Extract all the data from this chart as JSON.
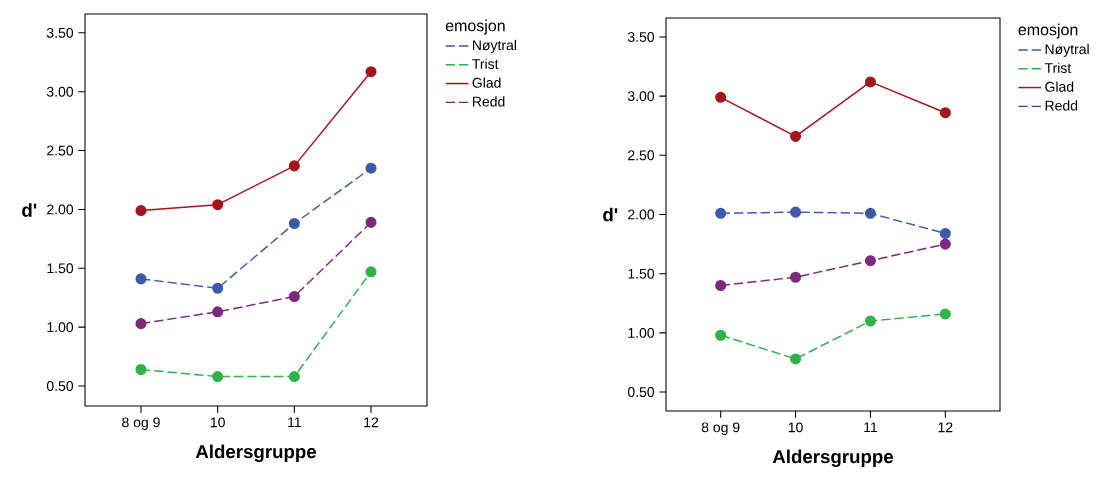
{
  "chart_data": [
    {
      "type": "line",
      "xlabel": "Aldersgruppe",
      "ylabel": "d'",
      "legend_title": "emosjon",
      "legend": "top right",
      "marker": "circle",
      "categories": [
        "8 og 9",
        "10",
        "11",
        "12"
      ],
      "ylim": [
        0.33,
        3.66
      ],
      "yticks": [
        {
          "value": 0.5,
          "label": "0.50"
        },
        {
          "value": 1.0,
          "label": "1.00"
        },
        {
          "value": 1.5,
          "label": "1.50"
        },
        {
          "value": 2.0,
          "label": "2.00"
        },
        {
          "value": 2.5,
          "label": "2.50"
        },
        {
          "value": 3.0,
          "label": "3.00"
        },
        {
          "value": 3.5,
          "label": "3.50"
        }
      ],
      "series": [
        {
          "name": "Nøytral",
          "color": "#3e59a9",
          "line_style": "dashed",
          "values": [
            1.41,
            1.33,
            1.88,
            2.35
          ]
        },
        {
          "name": "Trist",
          "color": "#2fb24a",
          "line_style": "dashed",
          "values": [
            0.64,
            0.58,
            0.58,
            1.47
          ]
        },
        {
          "name": "Glad",
          "color": "#a3161b",
          "line_style": "solid",
          "values": [
            1.99,
            2.04,
            2.37,
            3.17
          ]
        },
        {
          "name": "Redd",
          "color": "#7b2a7e",
          "line_style": "dashed",
          "values": [
            1.03,
            1.13,
            1.26,
            1.89
          ]
        }
      ]
    },
    {
      "type": "line",
      "xlabel": "Aldersgruppe",
      "ylabel": "d'",
      "legend_title": "emosjon",
      "legend": "top right",
      "marker": "circle",
      "categories": [
        "8 og 9",
        "10",
        "11",
        "12"
      ],
      "ylim": [
        0.34,
        3.66
      ],
      "yticks": [
        {
          "value": 0.5,
          "label": "0.50"
        },
        {
          "value": 1.0,
          "label": "1.00"
        },
        {
          "value": 1.5,
          "label": "1.50"
        },
        {
          "value": 2.0,
          "label": "2.00"
        },
        {
          "value": 2.5,
          "label": "2.50"
        },
        {
          "value": 3.0,
          "label": "3.00"
        },
        {
          "value": 3.5,
          "label": "3.50"
        }
      ],
      "series": [
        {
          "name": "Nøytral",
          "color": "#3e59a9",
          "line_style": "dashed",
          "values": [
            2.01,
            2.02,
            2.01,
            1.84
          ]
        },
        {
          "name": "Trist",
          "color": "#2fb24a",
          "line_style": "dashed",
          "values": [
            0.98,
            0.78,
            1.1,
            1.16
          ]
        },
        {
          "name": "Glad",
          "color": "#a3161b",
          "line_style": "solid",
          "values": [
            2.99,
            2.66,
            3.12,
            2.86
          ]
        },
        {
          "name": "Redd",
          "color": "#7b2a7e",
          "line_style": "dashed",
          "values": [
            1.4,
            1.47,
            1.61,
            1.75
          ]
        }
      ]
    }
  ]
}
